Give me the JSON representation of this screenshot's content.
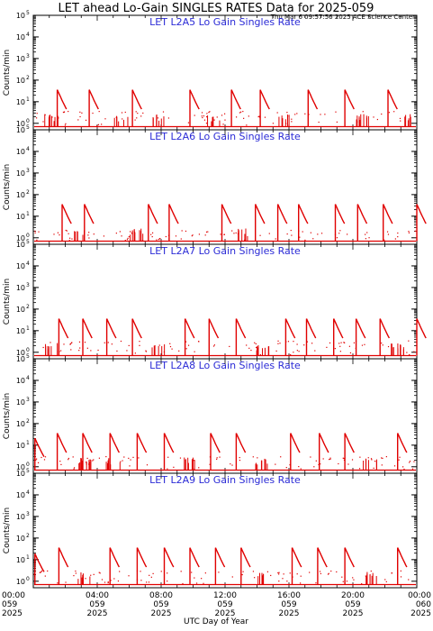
{
  "title": "LET ahead Lo-Gain SINGLES RATES Data for 2025-059",
  "timestamp": "Thu Mar  6 09:57:56 2025 ACE Science Center",
  "colors": {
    "trace": "#e00000",
    "panel_title": "#2b2bd6",
    "axis": "#000000"
  },
  "chart_data": [
    {
      "type": "line",
      "scale": "log",
      "title": "LET L2A5 Lo Gain Singles Rate",
      "ylabel": "Counts/min",
      "ylim": [
        0.5,
        100000
      ],
      "y_ticks": [
        "10",
        "10",
        "10",
        "10",
        "10",
        "10"
      ],
      "y_exponents": [
        "0",
        "1",
        "2",
        "3",
        "4",
        "5"
      ],
      "spikes": {
        "x": [
          1.5,
          3.5,
          6.2,
          9.8,
          12.4,
          14.2,
          17.2,
          19.5,
          22.2
        ],
        "peak": [
          35,
          35,
          35,
          35,
          35,
          35,
          35,
          35,
          35
        ]
      },
      "bursts": [
        1.1,
        5.5,
        7.8,
        11.3,
        15.8,
        20.6,
        23.4
      ],
      "baseline_level": 1.5
    },
    {
      "type": "line",
      "scale": "log",
      "title": "LET L2A6 Lo Gain Singles Rate",
      "ylabel": "Counts/min",
      "ylim": [
        0.5,
        100000
      ],
      "y_ticks": [
        "10",
        "10",
        "10",
        "10",
        "10",
        "10"
      ],
      "y_exponents": [
        "0",
        "1",
        "2",
        "3",
        "4",
        "5"
      ],
      "spikes": {
        "x": [
          1.8,
          3.2,
          7.2,
          8.5,
          11.8,
          13.9,
          15.3,
          16.6,
          18.9,
          20.3,
          21.9,
          24.0
        ],
        "peak": [
          35,
          35,
          35,
          35,
          35,
          35,
          35,
          35,
          35,
          35,
          35,
          35
        ]
      },
      "bursts": [
        3.0,
        6.5,
        13.0
      ],
      "baseline_level": 0.8
    },
    {
      "type": "line",
      "scale": "log",
      "title": "LET L2A7 Lo Gain Singles Rate",
      "ylabel": "Counts/min",
      "ylim": [
        0.5,
        100000
      ],
      "y_ticks": [
        "10",
        "10",
        "10",
        "10",
        "10",
        "10"
      ],
      "y_exponents": [
        "0",
        "1",
        "2",
        "3",
        "4",
        "5"
      ],
      "spikes": {
        "x": [
          1.6,
          3.1,
          4.6,
          6.2,
          9.5,
          11.0,
          12.7,
          15.8,
          17.1,
          18.8,
          20.2,
          21.7,
          24.0
        ],
        "peak": [
          35,
          35,
          35,
          35,
          35,
          35,
          35,
          35,
          35,
          35,
          35,
          35,
          35
        ]
      },
      "bursts": [
        1.2,
        7.8,
        14.3,
        22.8
      ],
      "baseline_level": 1.4
    },
    {
      "type": "line",
      "scale": "log",
      "title": "LET L2A8 Lo Gain Singles Rate",
      "ylabel": "Counts/min",
      "ylim": [
        0.5,
        100000
      ],
      "y_ticks": [
        "10",
        "10",
        "10",
        "10",
        "10",
        "10"
      ],
      "y_exponents": [
        "0",
        "1",
        "2",
        "3",
        "4",
        "5"
      ],
      "spikes": {
        "x": [
          0.1,
          1.5,
          3.1,
          4.8,
          6.5,
          8.2,
          11.1,
          12.7,
          16.1,
          17.9,
          19.5,
          22.8
        ],
        "peak": [
          20,
          35,
          35,
          35,
          35,
          35,
          35,
          35,
          35,
          35,
          35,
          35
        ]
      },
      "bursts": [
        3.3,
        5.0,
        9.7,
        14.3,
        21.1
      ],
      "baseline_level": 1.2
    },
    {
      "type": "line",
      "scale": "log",
      "title": "LET L2A9 Lo Gain Singles Rate",
      "ylabel": "Counts/min",
      "ylim": [
        0.5,
        100000
      ],
      "y_ticks": [
        "10",
        "10",
        "10",
        "10",
        "10",
        "10"
      ],
      "y_exponents": [
        "0",
        "1",
        "2",
        "3",
        "4",
        "5"
      ],
      "spikes": {
        "x": [
          0.1,
          1.6,
          4.8,
          6.5,
          8.2,
          9.8,
          11.4,
          13.0,
          16.2,
          17.8,
          19.5,
          22.8
        ],
        "peak": [
          18,
          35,
          35,
          35,
          35,
          35,
          35,
          35,
          35,
          35,
          35,
          35
        ]
      },
      "bursts": [
        3.2,
        14.4,
        21.2
      ],
      "baseline_level": 1.2
    }
  ],
  "x_axis": {
    "xlabel": "UTC Day of Year",
    "ticks": [
      {
        "time": "00:00",
        "day": "059",
        "year": "2025",
        "x": 0
      },
      {
        "time": "04:00",
        "day": "059",
        "year": "2025",
        "x": 4
      },
      {
        "time": "08:00",
        "day": "059",
        "year": "2025",
        "x": 8
      },
      {
        "time": "12:00",
        "day": "059",
        "year": "2025",
        "x": 12
      },
      {
        "time": "16:00",
        "day": "059",
        "year": "2025",
        "x": 16
      },
      {
        "time": "20:00",
        "day": "059",
        "year": "2025",
        "x": 20
      },
      {
        "time": "00:00",
        "day": "060",
        "year": "2025",
        "x": 24
      }
    ],
    "xlim": [
      0,
      24
    ]
  }
}
